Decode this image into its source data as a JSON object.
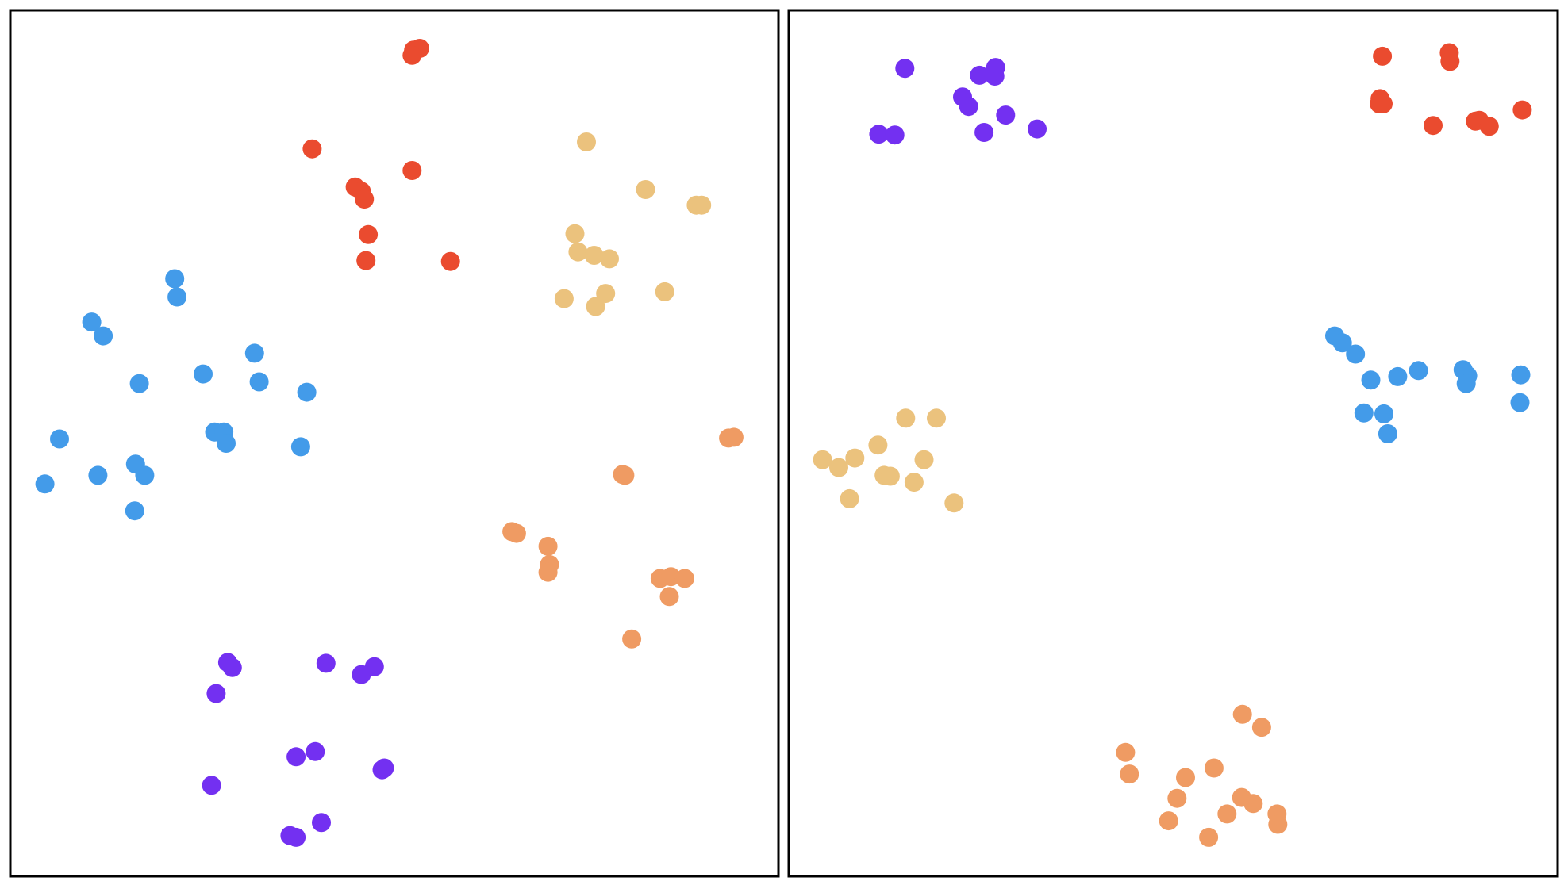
{
  "chart_data": [
    {
      "type": "scatter",
      "title": "",
      "xlabel": "",
      "ylabel": "",
      "xlim": [
        0,
        100
      ],
      "ylim": [
        0,
        100
      ],
      "grid": false,
      "legend": "none",
      "series": [
        {
          "color": "#ea4b2f",
          "points": [
            [
              52.5,
              95.4
            ],
            [
              53.3,
              95.6
            ],
            [
              52.3,
              94.8
            ],
            [
              39.3,
              84.0
            ],
            [
              52.3,
              81.5
            ],
            [
              44.9,
              79.6
            ],
            [
              45.7,
              79.1
            ],
            [
              46.1,
              78.2
            ],
            [
              46.6,
              74.1
            ],
            [
              46.3,
              71.1
            ],
            [
              57.3,
              71.0
            ]
          ]
        },
        {
          "color": "#ebc27d",
          "points": [
            [
              75.0,
              84.8
            ],
            [
              82.7,
              79.3
            ],
            [
              89.3,
              77.5
            ],
            [
              90.0,
              77.5
            ],
            [
              73.5,
              74.2
            ],
            [
              73.9,
              72.1
            ],
            [
              76.0,
              71.7
            ],
            [
              78.0,
              71.3
            ],
            [
              85.2,
              67.5
            ],
            [
              77.5,
              67.3
            ],
            [
              72.1,
              66.7
            ],
            [
              76.2,
              65.8
            ]
          ]
        },
        {
          "color": "#439be9",
          "points": [
            [
              21.4,
              69.0
            ],
            [
              21.7,
              66.9
            ],
            [
              10.6,
              64.0
            ],
            [
              12.1,
              62.4
            ],
            [
              31.8,
              60.4
            ],
            [
              16.8,
              56.9
            ],
            [
              25.1,
              58.0
            ],
            [
              32.4,
              57.1
            ],
            [
              38.6,
              55.9
            ],
            [
              26.6,
              51.3
            ],
            [
              27.8,
              51.3
            ],
            [
              28.1,
              50.0
            ],
            [
              6.4,
              50.5
            ],
            [
              37.8,
              49.6
            ],
            [
              16.3,
              47.6
            ],
            [
              11.4,
              46.3
            ],
            [
              17.5,
              46.3
            ],
            [
              4.5,
              45.3
            ],
            [
              16.2,
              42.2
            ]
          ]
        },
        {
          "color": "#ef9b63",
          "points": [
            [
              93.5,
              50.6
            ],
            [
              94.2,
              50.7
            ],
            [
              79.7,
              46.4
            ],
            [
              80.0,
              46.3
            ],
            [
              65.3,
              39.8
            ],
            [
              65.9,
              39.6
            ],
            [
              70.0,
              38.1
            ],
            [
              70.2,
              36.0
            ],
            [
              70.0,
              35.1
            ],
            [
              84.6,
              34.4
            ],
            [
              86.0,
              34.6
            ],
            [
              87.8,
              34.4
            ],
            [
              85.8,
              32.3
            ],
            [
              80.9,
              27.4
            ]
          ]
        },
        {
          "color": "#7330f1",
          "points": [
            [
              28.3,
              24.7
            ],
            [
              28.9,
              24.1
            ],
            [
              41.1,
              24.6
            ],
            [
              47.4,
              24.2
            ],
            [
              45.7,
              23.3
            ],
            [
              26.8,
              21.1
            ],
            [
              39.7,
              14.4
            ],
            [
              37.2,
              13.8
            ],
            [
              48.4,
              12.3
            ],
            [
              48.7,
              12.5
            ],
            [
              26.2,
              10.5
            ],
            [
              40.5,
              6.2
            ],
            [
              36.4,
              4.7
            ],
            [
              37.2,
              4.5
            ]
          ]
        }
      ]
    },
    {
      "type": "scatter",
      "title": "",
      "xlabel": "",
      "ylabel": "",
      "xlim": [
        0,
        100
      ],
      "ylim": [
        0,
        100
      ],
      "grid": false,
      "legend": "none",
      "series": [
        {
          "color": "#7330f1",
          "points": [
            [
              15.1,
              93.3
            ],
            [
              26.9,
              93.4
            ],
            [
              24.8,
              92.5
            ],
            [
              26.8,
              92.4
            ],
            [
              22.6,
              90.0
            ],
            [
              23.4,
              88.9
            ],
            [
              28.2,
              87.9
            ],
            [
              11.7,
              85.7
            ],
            [
              13.8,
              85.6
            ],
            [
              25.4,
              85.9
            ],
            [
              32.3,
              86.3
            ]
          ]
        },
        {
          "color": "#ea4b2f",
          "points": [
            [
              77.2,
              94.7
            ],
            [
              85.9,
              95.1
            ],
            [
              86.0,
              94.1
            ],
            [
              76.9,
              89.8
            ],
            [
              76.8,
              89.2
            ],
            [
              77.3,
              89.2
            ],
            [
              83.8,
              86.7
            ],
            [
              89.3,
              87.2
            ],
            [
              89.8,
              87.3
            ],
            [
              91.1,
              86.6
            ],
            [
              95.4,
              88.5
            ]
          ]
        },
        {
          "color": "#439be9",
          "points": [
            [
              71.0,
              62.4
            ],
            [
              72.0,
              61.6
            ],
            [
              73.7,
              60.3
            ],
            [
              87.7,
              58.5
            ],
            [
              88.3,
              57.8
            ],
            [
              95.2,
              57.9
            ],
            [
              75.7,
              57.3
            ],
            [
              79.2,
              57.7
            ],
            [
              81.9,
              58.4
            ],
            [
              88.1,
              56.9
            ],
            [
              95.1,
              54.7
            ],
            [
              74.8,
              53.5
            ],
            [
              77.4,
              53.4
            ],
            [
              77.9,
              51.1
            ]
          ]
        },
        {
          "color": "#ebc27d",
          "points": [
            [
              15.2,
              52.9
            ],
            [
              19.2,
              52.9
            ],
            [
              11.6,
              49.8
            ],
            [
              4.4,
              48.1
            ],
            [
              8.6,
              48.3
            ],
            [
              17.6,
              48.1
            ],
            [
              6.5,
              47.2
            ],
            [
              12.4,
              46.3
            ],
            [
              13.2,
              46.2
            ],
            [
              16.3,
              45.5
            ],
            [
              7.9,
              43.6
            ],
            [
              21.5,
              43.1
            ]
          ]
        },
        {
          "color": "#ef9b63",
          "points": [
            [
              59.0,
              18.7
            ],
            [
              61.5,
              17.2
            ],
            [
              43.8,
              14.3
            ],
            [
              44.3,
              11.8
            ],
            [
              55.3,
              12.5
            ],
            [
              51.6,
              11.4
            ],
            [
              50.5,
              9.0
            ],
            [
              58.9,
              9.1
            ],
            [
              60.4,
              8.4
            ],
            [
              57.0,
              7.2
            ],
            [
              63.5,
              7.2
            ],
            [
              63.6,
              6.0
            ],
            [
              49.4,
              6.4
            ],
            [
              54.6,
              4.5
            ]
          ]
        }
      ]
    }
  ]
}
